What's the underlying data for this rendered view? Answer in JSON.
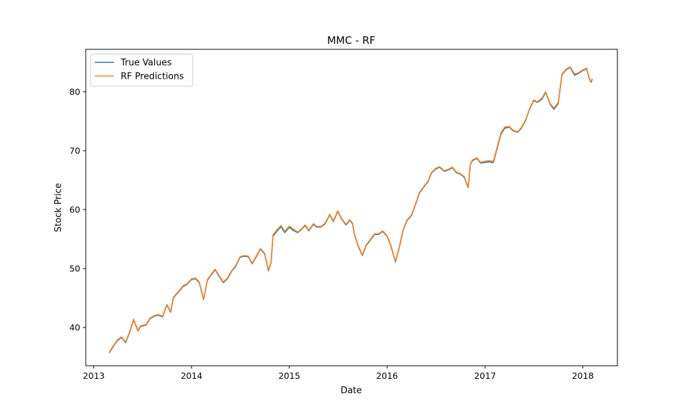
{
  "chart_data": {
    "type": "line",
    "title": "MMC - RF",
    "xlabel": "Date",
    "ylabel": "Stock Price",
    "xlim": [
      "2012-12-02",
      "2018-05-10"
    ],
    "ylim": [
      33.5,
      87.2
    ],
    "x_ticks": [
      "2013",
      "2014",
      "2015",
      "2016",
      "2017",
      "2018"
    ],
    "y_ticks": [
      40,
      50,
      60,
      70,
      80
    ],
    "grid": false,
    "legend": "top-left",
    "colors": {
      "true_values": "#1f77b4",
      "rf_predictions": "#ff7f0e"
    },
    "series": [
      {
        "name": "True Values",
        "x": [
          "2013-02-28",
          "2013-03-15",
          "2013-03-30",
          "2013-04-15",
          "2013-04-30",
          "2013-05-15",
          "2013-05-30",
          "2013-06-15",
          "2013-06-25",
          "2013-07-05",
          "2013-07-15",
          "2013-07-30",
          "2013-08-15",
          "2013-08-30",
          "2013-09-15",
          "2013-10-01",
          "2013-10-15",
          "2013-10-25",
          "2013-11-01",
          "2013-11-15",
          "2013-12-01",
          "2013-12-15",
          "2013-12-31",
          "2014-01-15",
          "2014-01-30",
          "2014-02-15",
          "2014-03-01",
          "2014-03-15",
          "2014-03-30",
          "2014-04-15",
          "2014-04-30",
          "2014-05-15",
          "2014-05-30",
          "2014-06-15",
          "2014-07-01",
          "2014-07-15",
          "2014-08-01",
          "2014-08-15",
          "2014-09-01",
          "2014-09-15",
          "2014-10-01",
          "2014-10-15",
          "2014-10-25",
          "2014-11-01",
          "2014-11-15",
          "2014-12-01",
          "2014-12-15",
          "2015-01-01",
          "2015-01-15",
          "2015-02-01",
          "2015-02-15",
          "2015-03-01",
          "2015-03-15",
          "2015-04-01",
          "2015-04-15",
          "2015-05-01",
          "2015-05-15",
          "2015-06-01",
          "2015-06-15",
          "2015-07-01",
          "2015-07-15",
          "2015-08-01",
          "2015-08-15",
          "2015-08-25",
          "2015-09-01",
          "2015-09-15",
          "2015-10-01",
          "2015-10-15",
          "2015-11-01",
          "2015-11-15",
          "2015-12-01",
          "2015-12-15",
          "2016-01-01",
          "2016-01-15",
          "2016-02-01",
          "2016-02-15",
          "2016-03-01",
          "2016-03-15",
          "2016-04-01",
          "2016-04-15",
          "2016-05-01",
          "2016-05-15",
          "2016-06-01",
          "2016-06-15",
          "2016-07-01",
          "2016-07-15",
          "2016-08-01",
          "2016-08-15",
          "2016-09-01",
          "2016-09-15",
          "2016-10-01",
          "2016-10-15",
          "2016-10-30",
          "2016-11-07",
          "2016-11-15",
          "2016-12-01",
          "2016-12-15",
          "2017-01-01",
          "2017-01-15",
          "2017-02-01",
          "2017-02-15",
          "2017-03-01",
          "2017-03-15",
          "2017-04-01",
          "2017-04-15",
          "2017-05-01",
          "2017-05-15",
          "2017-06-01",
          "2017-06-15",
          "2017-07-01",
          "2017-07-15",
          "2017-08-01",
          "2017-08-15",
          "2017-09-01",
          "2017-09-15",
          "2017-10-01",
          "2017-10-15",
          "2017-11-01",
          "2017-11-15",
          "2017-12-01",
          "2017-12-15",
          "2018-01-01",
          "2018-01-15",
          "2018-01-25",
          "2018-02-01",
          "2018-02-05"
        ],
        "values": [
          35.7,
          36.8,
          37.8,
          38.3,
          37.4,
          39.2,
          41.3,
          39.4,
          40.2,
          40.3,
          40.4,
          41.5,
          41.9,
          42.1,
          41.8,
          43.8,
          42.6,
          45.0,
          45.4,
          46.1,
          47.0,
          47.3,
          48.1,
          48.3,
          47.6,
          44.7,
          48.0,
          48.9,
          49.8,
          48.6,
          47.6,
          48.3,
          49.5,
          50.4,
          51.9,
          52.1,
          52.0,
          50.8,
          52.1,
          53.3,
          52.5,
          49.6,
          51.0,
          55.5,
          56.3,
          57.1,
          56.1,
          57.0,
          56.5,
          56.1,
          56.6,
          57.3,
          56.4,
          57.5,
          57.0,
          57.1,
          57.6,
          59.1,
          58.0,
          59.7,
          58.4,
          57.4,
          58.2,
          57.6,
          55.8,
          53.8,
          52.2,
          53.9,
          54.9,
          55.8,
          55.8,
          56.3,
          55.5,
          53.9,
          51.1,
          53.4,
          56.5,
          58.1,
          59.0,
          60.7,
          62.8,
          63.7,
          64.7,
          66.2,
          66.9,
          67.2,
          66.5,
          66.7,
          67.1,
          66.3,
          66.0,
          65.5,
          63.7,
          67.7,
          68.3,
          68.7,
          67.9,
          68.0,
          68.1,
          68.0,
          70.4,
          72.8,
          73.8,
          74.0,
          73.4,
          73.1,
          73.7,
          75.1,
          76.9,
          78.5,
          78.2,
          78.7,
          79.9,
          77.9,
          77.0,
          78.0,
          82.9,
          83.8,
          84.1,
          82.8,
          83.1,
          83.6,
          83.9,
          82.2,
          81.6,
          82.1
        ]
      },
      {
        "name": "RF Predictions",
        "x": [
          "2013-02-28",
          "2013-03-15",
          "2013-03-30",
          "2013-04-15",
          "2013-04-30",
          "2013-05-15",
          "2013-05-30",
          "2013-06-15",
          "2013-06-25",
          "2013-07-05",
          "2013-07-15",
          "2013-07-30",
          "2013-08-15",
          "2013-08-30",
          "2013-09-15",
          "2013-10-01",
          "2013-10-15",
          "2013-10-25",
          "2013-11-01",
          "2013-11-15",
          "2013-12-01",
          "2013-12-15",
          "2013-12-31",
          "2014-01-15",
          "2014-01-30",
          "2014-02-15",
          "2014-03-01",
          "2014-03-15",
          "2014-03-30",
          "2014-04-15",
          "2014-04-30",
          "2014-05-15",
          "2014-05-30",
          "2014-06-15",
          "2014-07-01",
          "2014-07-15",
          "2014-08-01",
          "2014-08-15",
          "2014-09-01",
          "2014-09-15",
          "2014-10-01",
          "2014-10-15",
          "2014-10-25",
          "2014-11-01",
          "2014-11-15",
          "2014-12-01",
          "2014-12-15",
          "2015-01-01",
          "2015-01-15",
          "2015-02-01",
          "2015-02-15",
          "2015-03-01",
          "2015-03-15",
          "2015-04-01",
          "2015-04-15",
          "2015-05-01",
          "2015-05-15",
          "2015-06-01",
          "2015-06-15",
          "2015-07-01",
          "2015-07-15",
          "2015-08-01",
          "2015-08-15",
          "2015-08-25",
          "2015-09-01",
          "2015-09-15",
          "2015-10-01",
          "2015-10-15",
          "2015-11-01",
          "2015-11-15",
          "2015-12-01",
          "2015-12-15",
          "2016-01-01",
          "2016-01-15",
          "2016-02-01",
          "2016-02-15",
          "2016-03-01",
          "2016-03-15",
          "2016-04-01",
          "2016-04-15",
          "2016-05-01",
          "2016-05-15",
          "2016-06-01",
          "2016-06-15",
          "2016-07-01",
          "2016-07-15",
          "2016-08-01",
          "2016-08-15",
          "2016-09-01",
          "2016-09-15",
          "2016-10-01",
          "2016-10-15",
          "2016-10-30",
          "2016-11-07",
          "2016-11-15",
          "2016-12-01",
          "2016-12-15",
          "2017-01-01",
          "2017-01-15",
          "2017-02-01",
          "2017-02-15",
          "2017-03-01",
          "2017-03-15",
          "2017-04-01",
          "2017-04-15",
          "2017-05-01",
          "2017-05-15",
          "2017-06-01",
          "2017-06-15",
          "2017-07-01",
          "2017-07-15",
          "2017-08-01",
          "2017-08-15",
          "2017-09-01",
          "2017-09-15",
          "2017-10-01",
          "2017-10-15",
          "2017-11-01",
          "2017-11-15",
          "2017-12-01",
          "2017-12-15",
          "2018-01-01",
          "2018-01-15",
          "2018-01-25",
          "2018-02-01",
          "2018-02-05"
        ],
        "values": [
          35.8,
          36.9,
          37.9,
          38.4,
          37.5,
          39.3,
          41.4,
          39.5,
          40.3,
          40.4,
          40.5,
          41.6,
          42.0,
          42.2,
          41.9,
          43.9,
          42.7,
          45.1,
          45.5,
          46.2,
          47.1,
          47.4,
          48.2,
          48.4,
          47.7,
          44.8,
          48.1,
          49.0,
          49.9,
          48.7,
          47.7,
          48.4,
          49.6,
          50.5,
          52.0,
          52.2,
          52.1,
          50.9,
          52.2,
          53.4,
          52.6,
          49.7,
          51.1,
          55.7,
          56.5,
          57.3,
          56.3,
          57.2,
          56.7,
          56.2,
          56.7,
          57.4,
          56.5,
          57.6,
          57.1,
          57.2,
          57.7,
          59.2,
          58.1,
          59.8,
          58.5,
          57.5,
          58.3,
          57.7,
          55.9,
          53.9,
          52.3,
          54.0,
          55.0,
          55.9,
          55.9,
          56.4,
          55.6,
          54.0,
          51.2,
          53.5,
          56.6,
          58.2,
          59.1,
          60.8,
          62.9,
          63.8,
          64.8,
          66.3,
          67.0,
          67.3,
          66.6,
          66.8,
          67.2,
          66.4,
          66.1,
          65.6,
          63.8,
          67.8,
          68.4,
          68.8,
          68.0,
          68.2,
          68.3,
          68.2,
          70.6,
          73.0,
          74.0,
          74.1,
          73.5,
          73.2,
          73.8,
          75.2,
          77.0,
          78.6,
          78.3,
          78.9,
          80.0,
          78.0,
          77.2,
          78.2,
          83.0,
          83.9,
          84.2,
          83.0,
          83.2,
          83.7,
          84.0,
          82.3,
          81.7,
          82.2
        ]
      }
    ]
  }
}
